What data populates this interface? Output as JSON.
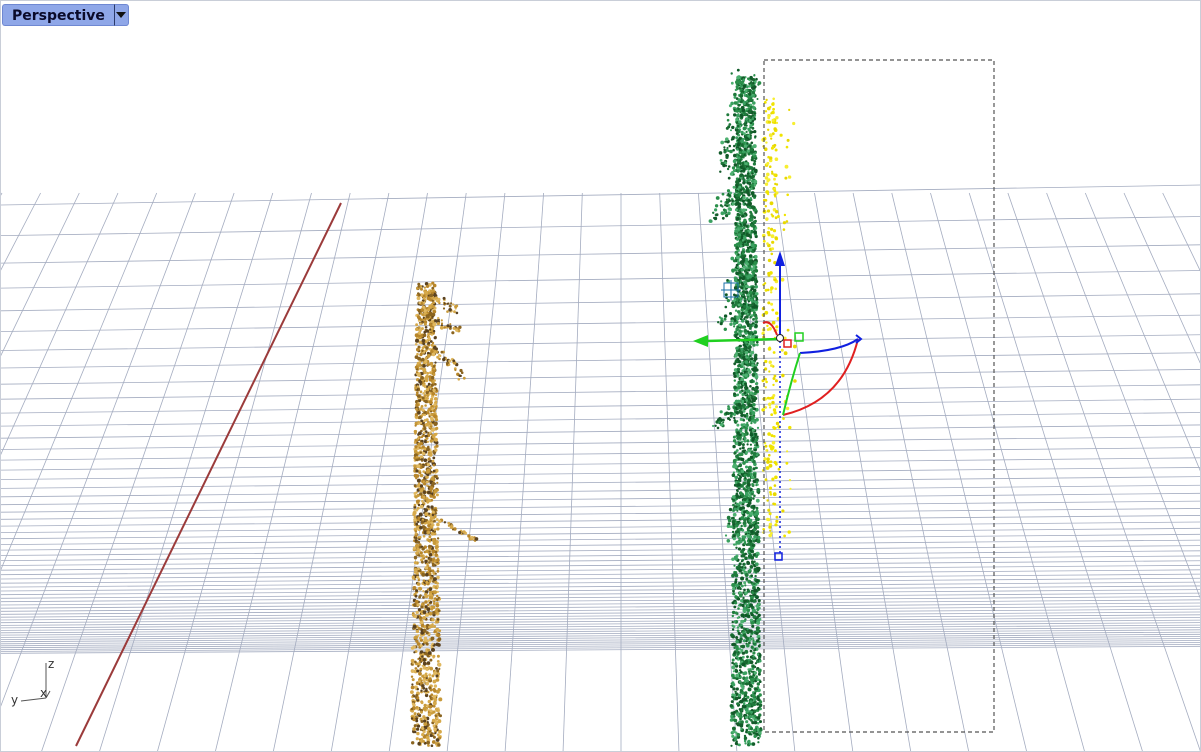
{
  "viewport": {
    "title": "Perspective",
    "dropdown_icon": "chevron-down-icon"
  },
  "axis_indicator": {
    "x_label": "x",
    "y_label": "y",
    "z_label": "z"
  },
  "colors": {
    "tab_background": "#8fa7e8",
    "grid_line": "#a4acc0",
    "axis_line": "#9b3b3b",
    "tree_left": "#c89a3a",
    "tree_right": "#1f7a3c",
    "selection_highlight": "#f0e400",
    "gizmo_x": "#e02020",
    "gizmo_y": "#20d020",
    "gizmo_z": "#1020e0"
  },
  "objects": [
    {
      "name": "point-cloud-tree-left",
      "kind": "point cloud"
    },
    {
      "name": "point-cloud-tree-right",
      "kind": "point cloud",
      "selected": true
    }
  ]
}
